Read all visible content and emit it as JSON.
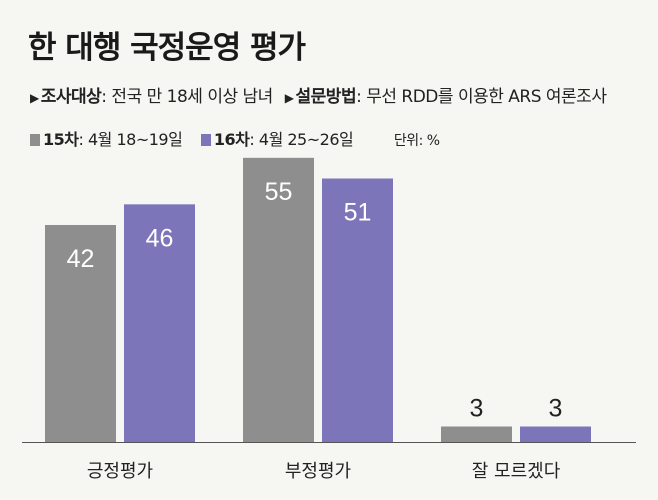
{
  "header": {
    "title": "한 대행 국정운영 평가",
    "survey_target_label": "조사대상",
    "survey_target_value": ": 전국 만 18세 이상 남녀",
    "survey_method_label": "설문방법",
    "survey_method_value": ": 무선 RDD를 이용한 ARS 여론조사",
    "unit": "단위: %"
  },
  "legend": [
    {
      "name": "15차",
      "period": ": 4월 18~19일",
      "color": "#8e8e8e"
    },
    {
      "name": "16차",
      "period": ": 4월 25~26일",
      "color": "#7d75b9"
    }
  ],
  "icons": {
    "bullet": "triangle-right-icon"
  },
  "chart_data": {
    "type": "bar",
    "categories": [
      "긍정평가",
      "부정평가",
      "잘 모르겠다"
    ],
    "series": [
      {
        "name": "15차",
        "values": [
          42,
          55,
          3
        ],
        "color": "#8e8e8e"
      },
      {
        "name": "16차",
        "values": [
          46,
          51,
          3
        ],
        "color": "#7d75b9"
      }
    ],
    "ylim": [
      0,
      60
    ],
    "grid": false,
    "legend_position": "top-left"
  }
}
